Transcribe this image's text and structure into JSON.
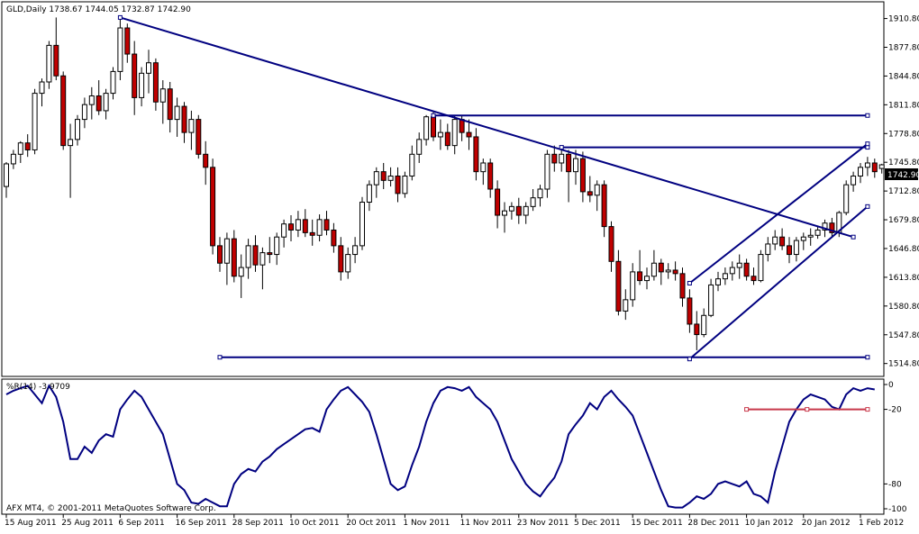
{
  "window": {
    "header": "GLD,Daily  1738.67 1744.05 1732.87 1742.90",
    "price_badge": "1742.90",
    "copyright": "AFX MT4, © 2001-2011 MetaQuotes Software Corp."
  },
  "colors": {
    "background": "#ffffff",
    "bull_candle": "#ffffff",
    "bear_candle": "#c00000",
    "trendline": "#000080",
    "rsi_line": "#000080",
    "level_line": "#c8384a",
    "axis": "#000000"
  },
  "chart_data": [
    {
      "type": "candlestick",
      "title": "GLD,Daily",
      "ohlc_header": "1738.67 1744.05 1732.87 1742.90",
      "last_price": 1742.9,
      "ylim": [
        1500,
        1930
      ],
      "y_ticks": [
        "1910.80",
        "1877.80",
        "1844.80",
        "1811.80",
        "1778.80",
        "1745.80",
        "1712.80",
        "1679.80",
        "1646.80",
        "1613.80",
        "1580.80",
        "1547.80",
        "1514.80"
      ],
      "x_ticks": [
        "15 Aug 2011",
        "25 Aug 2011",
        "6 Sep 2011",
        "16 Sep 2011",
        "28 Sep 2011",
        "10 Oct 2011",
        "20 Oct 2011",
        "1 Nov 2011",
        "11 Nov 2011",
        "23 Nov 2011",
        "5 Dec 2011",
        "15 Dec 2011",
        "28 Dec 2011",
        "10 Jan 2012",
        "20 Jan 2012",
        "1 Feb 2012"
      ],
      "x_tick_index": [
        0,
        8,
        16,
        24,
        32,
        40,
        48,
        56,
        64,
        72,
        80,
        88,
        96,
        104,
        112,
        120
      ],
      "candles": [
        [
          1718,
          1746,
          1705,
          1744
        ],
        [
          1744,
          1760,
          1738,
          1755
        ],
        [
          1755,
          1770,
          1745,
          1768
        ],
        [
          1768,
          1778,
          1752,
          1760
        ],
        [
          1760,
          1830,
          1755,
          1825
        ],
        [
          1825,
          1842,
          1810,
          1838
        ],
        [
          1838,
          1885,
          1830,
          1880
        ],
        [
          1880,
          1912,
          1840,
          1845
        ],
        [
          1845,
          1850,
          1760,
          1765
        ],
        [
          1765,
          1790,
          1705,
          1772
        ],
        [
          1772,
          1800,
          1765,
          1795
        ],
        [
          1795,
          1820,
          1785,
          1812
        ],
        [
          1812,
          1832,
          1795,
          1822
        ],
        [
          1822,
          1840,
          1800,
          1805
        ],
        [
          1805,
          1830,
          1795,
          1825
        ],
        [
          1825,
          1855,
          1818,
          1850
        ],
        [
          1850,
          1910,
          1840,
          1900
        ],
        [
          1900,
          1905,
          1860,
          1870
        ],
        [
          1870,
          1885,
          1800,
          1820
        ],
        [
          1820,
          1855,
          1810,
          1848
        ],
        [
          1848,
          1875,
          1825,
          1860
        ],
        [
          1860,
          1865,
          1805,
          1815
        ],
        [
          1815,
          1840,
          1790,
          1830
        ],
        [
          1830,
          1838,
          1780,
          1795
        ],
        [
          1795,
          1820,
          1775,
          1810
        ],
        [
          1810,
          1815,
          1768,
          1780
        ],
        [
          1780,
          1805,
          1760,
          1795
        ],
        [
          1795,
          1800,
          1750,
          1755
        ],
        [
          1755,
          1770,
          1720,
          1740
        ],
        [
          1740,
          1750,
          1640,
          1650
        ],
        [
          1650,
          1660,
          1620,
          1630
        ],
        [
          1630,
          1665,
          1605,
          1658
        ],
        [
          1658,
          1668,
          1608,
          1615
        ],
        [
          1615,
          1640,
          1590,
          1625
        ],
        [
          1625,
          1658,
          1612,
          1650
        ],
        [
          1650,
          1662,
          1620,
          1628
        ],
        [
          1628,
          1648,
          1600,
          1642
        ],
        [
          1642,
          1660,
          1630,
          1640
        ],
        [
          1640,
          1665,
          1628,
          1660
        ],
        [
          1660,
          1680,
          1648,
          1675
        ],
        [
          1675,
          1685,
          1655,
          1668
        ],
        [
          1668,
          1690,
          1660,
          1680
        ],
        [
          1680,
          1692,
          1660,
          1665
        ],
        [
          1665,
          1680,
          1650,
          1662
        ],
        [
          1662,
          1686,
          1655,
          1680
        ],
        [
          1680,
          1690,
          1662,
          1668
        ],
        [
          1668,
          1676,
          1642,
          1650
        ],
        [
          1650,
          1660,
          1610,
          1620
        ],
        [
          1620,
          1648,
          1612,
          1640
        ],
        [
          1640,
          1660,
          1630,
          1650
        ],
        [
          1650,
          1706,
          1645,
          1700
        ],
        [
          1700,
          1725,
          1690,
          1720
        ],
        [
          1720,
          1740,
          1705,
          1735
        ],
        [
          1735,
          1745,
          1715,
          1725
        ],
        [
          1725,
          1740,
          1718,
          1730
        ],
        [
          1730,
          1740,
          1700,
          1710
        ],
        [
          1710,
          1735,
          1705,
          1730
        ],
        [
          1730,
          1765,
          1725,
          1755
        ],
        [
          1755,
          1780,
          1745,
          1772
        ],
        [
          1772,
          1800,
          1765,
          1798
        ],
        [
          1798,
          1805,
          1770,
          1775
        ],
        [
          1775,
          1795,
          1760,
          1780
        ],
        [
          1780,
          1790,
          1760,
          1765
        ],
        [
          1765,
          1800,
          1755,
          1795
        ],
        [
          1795,
          1800,
          1770,
          1780
        ],
        [
          1780,
          1795,
          1760,
          1775
        ],
        [
          1775,
          1785,
          1725,
          1735
        ],
        [
          1735,
          1750,
          1720,
          1745
        ],
        [
          1745,
          1750,
          1705,
          1715
        ],
        [
          1715,
          1725,
          1670,
          1685
        ],
        [
          1685,
          1700,
          1665,
          1690
        ],
        [
          1690,
          1700,
          1680,
          1695
        ],
        [
          1695,
          1705,
          1675,
          1685
        ],
        [
          1685,
          1700,
          1675,
          1695
        ],
        [
          1695,
          1715,
          1690,
          1705
        ],
        [
          1705,
          1720,
          1695,
          1715
        ],
        [
          1715,
          1760,
          1705,
          1755
        ],
        [
          1755,
          1765,
          1735,
          1745
        ],
        [
          1745,
          1765,
          1735,
          1755
        ],
        [
          1755,
          1760,
          1700,
          1735
        ],
        [
          1735,
          1760,
          1720,
          1750
        ],
        [
          1750,
          1758,
          1700,
          1712
        ],
        [
          1712,
          1730,
          1700,
          1708
        ],
        [
          1708,
          1725,
          1690,
          1720
        ],
        [
          1720,
          1725,
          1660,
          1672
        ],
        [
          1672,
          1678,
          1620,
          1632
        ],
        [
          1632,
          1645,
          1570,
          1575
        ],
        [
          1575,
          1600,
          1565,
          1588
        ],
        [
          1588,
          1630,
          1580,
          1620
        ],
        [
          1620,
          1645,
          1605,
          1610
        ],
        [
          1610,
          1625,
          1600,
          1615
        ],
        [
          1615,
          1645,
          1610,
          1630
        ],
        [
          1630,
          1635,
          1605,
          1620
        ],
        [
          1620,
          1630,
          1612,
          1622
        ],
        [
          1622,
          1632,
          1610,
          1618
        ],
        [
          1618,
          1625,
          1580,
          1590
        ],
        [
          1590,
          1600,
          1550,
          1560
        ],
        [
          1560,
          1575,
          1530,
          1548
        ],
        [
          1548,
          1578,
          1545,
          1570
        ],
        [
          1570,
          1612,
          1568,
          1605
        ],
        [
          1605,
          1620,
          1598,
          1612
        ],
        [
          1612,
          1625,
          1605,
          1618
        ],
        [
          1618,
          1632,
          1610,
          1625
        ],
        [
          1625,
          1640,
          1612,
          1630
        ],
        [
          1630,
          1635,
          1610,
          1615
        ],
        [
          1615,
          1625,
          1605,
          1610
        ],
        [
          1610,
          1645,
          1608,
          1640
        ],
        [
          1640,
          1660,
          1632,
          1652
        ],
        [
          1652,
          1668,
          1645,
          1660
        ],
        [
          1660,
          1670,
          1645,
          1650
        ],
        [
          1650,
          1660,
          1630,
          1640
        ],
        [
          1640,
          1660,
          1632,
          1656
        ],
        [
          1656,
          1665,
          1645,
          1660
        ],
        [
          1660,
          1670,
          1650,
          1662
        ],
        [
          1662,
          1672,
          1658,
          1668
        ],
        [
          1668,
          1680,
          1660,
          1676
        ],
        [
          1676,
          1682,
          1660,
          1665
        ],
        [
          1665,
          1690,
          1660,
          1688
        ],
        [
          1688,
          1725,
          1685,
          1720
        ],
        [
          1720,
          1735,
          1712,
          1730
        ],
        [
          1730,
          1745,
          1722,
          1740
        ],
        [
          1740,
          1752,
          1730,
          1745
        ],
        [
          1745,
          1750,
          1728,
          1735
        ],
        [
          1738.67,
          1744.05,
          1732.87,
          1742.9
        ]
      ],
      "trendlines": [
        {
          "points": [
            [
              16,
              1912
            ],
            [
              119,
              1660
            ]
          ]
        },
        {
          "points": [
            [
              60,
              1799.5
            ],
            [
              121,
              1799.5
            ]
          ]
        },
        {
          "points": [
            [
              78,
              1763
            ],
            [
              121,
              1763
            ]
          ]
        },
        {
          "points": [
            [
              30,
              1522
            ],
            [
              121,
              1522
            ]
          ]
        },
        {
          "points": [
            [
              96,
              1607
            ],
            [
              121,
              1767
            ]
          ]
        },
        {
          "points": [
            [
              96,
              1520
            ],
            [
              121,
              1695
            ]
          ]
        }
      ]
    },
    {
      "type": "line",
      "title": "%R(14) -3.9709",
      "ylim": [
        -100,
        0
      ],
      "y_ticks": [
        "0",
        "-20",
        "-80",
        "-100"
      ],
      "series": [
        {
          "values": [
            -8,
            -5,
            -3,
            -1,
            -8,
            -15,
            -1,
            -10,
            -30,
            -60,
            -60,
            -50,
            -55,
            -45,
            -40,
            -42,
            -20,
            -12,
            -5,
            -10,
            -20,
            -30,
            -40,
            -60,
            -80,
            -85,
            -95,
            -96,
            -92,
            -95,
            -98,
            -98,
            -80,
            -72,
            -68,
            -70,
            -62,
            -58,
            -52,
            -48,
            -44,
            -40,
            -36,
            -35,
            -38,
            -20,
            -12,
            -5,
            -2,
            -8,
            -14,
            -22,
            -40,
            -60,
            -80,
            -85,
            -82,
            -65,
            -50,
            -30,
            -15,
            -5,
            -2,
            -3,
            -5,
            -2,
            -10,
            -15,
            -20,
            -30,
            -45,
            -60,
            -70,
            -80,
            -86,
            -90,
            -82,
            -75,
            -62,
            -40,
            -32,
            -25,
            -15,
            -20,
            -10,
            -5,
            -12,
            -18,
            -25,
            -40,
            -55,
            -70,
            -85,
            -98,
            -99,
            -99,
            -95,
            -90,
            -92,
            -88,
            -80,
            -78,
            -80,
            -82,
            -78,
            -88,
            -90,
            -95,
            -70,
            -50,
            -30,
            -20,
            -12,
            -8,
            -10,
            -12,
            -18,
            -20,
            -8,
            -3,
            -5,
            -3,
            -4
          ]
        },
        {
          "values": [
            -18,
            -18,
            -18,
            -18,
            -18,
            -18,
            -18,
            -18,
            -18,
            -18,
            -18,
            -18,
            -18,
            -18,
            -18,
            -18,
            -18,
            -18
          ]
        }
      ],
      "level_line": {
        "value": -20,
        "from_index": 104,
        "to_index": 121
      }
    }
  ]
}
